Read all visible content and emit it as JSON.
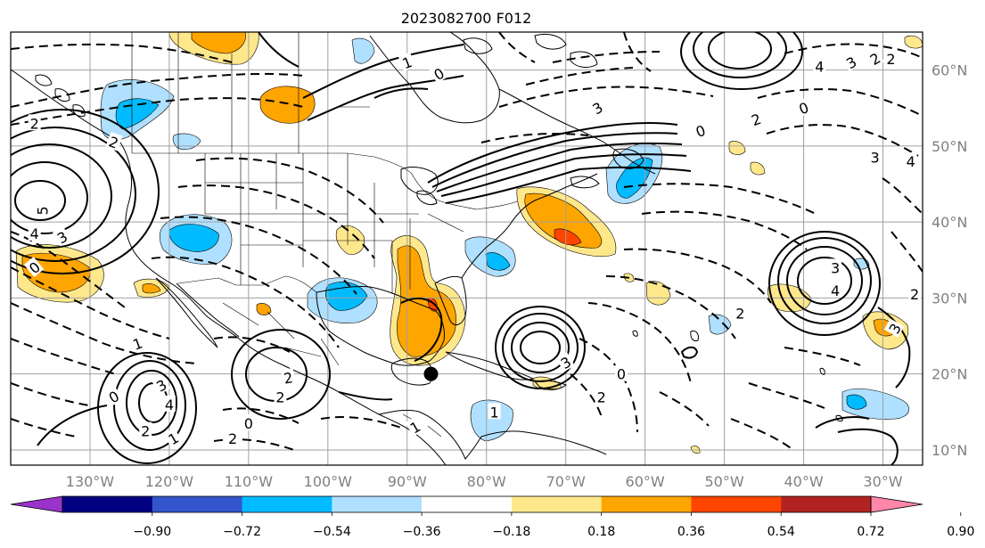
{
  "title": "2023082700 F012",
  "map": {
    "lon_range": [
      -140,
      -25
    ],
    "lat_range": [
      8,
      65
    ],
    "lat_labels": [
      "60°N",
      "50°N",
      "40°N",
      "30°N",
      "20°N",
      "10°N"
    ],
    "lon_labels": [
      "130°W",
      "120°W",
      "110°W",
      "100°W",
      "90°W",
      "80°W",
      "70°W",
      "60°W",
      "50°W",
      "40°W",
      "30°W"
    ],
    "contour_labels": [
      {
        "text": "1",
        "lon": -90,
        "lat": 61,
        "rot": -20
      },
      {
        "text": "0",
        "lon": -86,
        "lat": 59.5,
        "rot": -30
      },
      {
        "text": "2",
        "lon": -127,
        "lat": 50.5,
        "rot": 20
      },
      {
        "text": "2",
        "lon": -137,
        "lat": 53,
        "rot": 0
      },
      {
        "text": "5",
        "lon": -136,
        "lat": 41.5,
        "rot": -90
      },
      {
        "text": "4",
        "lon": -137,
        "lat": 38.5,
        "rot": 0
      },
      {
        "text": "3",
        "lon": -133.5,
        "lat": 38,
        "rot": -30
      },
      {
        "text": "0",
        "lon": -137,
        "lat": 34,
        "rot": -40
      },
      {
        "text": "3",
        "lon": -66,
        "lat": 55,
        "rot": -30
      },
      {
        "text": "2",
        "lon": -46,
        "lat": 53.5,
        "rot": -20
      },
      {
        "text": "0",
        "lon": -53,
        "lat": 52,
        "rot": -20
      },
      {
        "text": "0",
        "lon": -40,
        "lat": 55,
        "rot": -20
      },
      {
        "text": "4",
        "lon": -38,
        "lat": 60.5,
        "rot": 0
      },
      {
        "text": "3",
        "lon": -34,
        "lat": 61,
        "rot": -30
      },
      {
        "text": "2",
        "lon": -31,
        "lat": 61.5,
        "rot": -30
      },
      {
        "text": "2",
        "lon": -29,
        "lat": 61.5,
        "rot": 0
      },
      {
        "text": "3",
        "lon": -31,
        "lat": 48.5,
        "rot": 0
      },
      {
        "text": "4",
        "lon": -26.5,
        "lat": 48,
        "rot": 0
      },
      {
        "text": "3",
        "lon": -36,
        "lat": 34,
        "rot": 0
      },
      {
        "text": "4",
        "lon": -36,
        "lat": 31,
        "rot": 0
      },
      {
        "text": "2",
        "lon": -26,
        "lat": 30.5,
        "rot": 0
      },
      {
        "text": "3",
        "lon": -28.5,
        "lat": 26,
        "rot": -60
      },
      {
        "text": "2",
        "lon": -48,
        "lat": 28,
        "rot": 0
      },
      {
        "text": "2",
        "lon": -106,
        "lat": 17,
        "rot": 0
      },
      {
        "text": "2",
        "lon": -105,
        "lat": 19.5,
        "rot": -10
      },
      {
        "text": "3",
        "lon": -121,
        "lat": 18.5,
        "rot": -30
      },
      {
        "text": "4",
        "lon": -120,
        "lat": 16,
        "rot": 0
      },
      {
        "text": "2",
        "lon": -123,
        "lat": 12.5,
        "rot": 0
      },
      {
        "text": "1",
        "lon": -119.5,
        "lat": 11.5,
        "rot": -30
      },
      {
        "text": "0",
        "lon": -127,
        "lat": 17,
        "rot": -30
      },
      {
        "text": "1",
        "lon": -124,
        "lat": 24,
        "rot": -20
      },
      {
        "text": "3",
        "lon": -70,
        "lat": 21.5,
        "rot": -30
      },
      {
        "text": "0",
        "lon": -63,
        "lat": 20,
        "rot": 0
      },
      {
        "text": "2",
        "lon": -65.5,
        "lat": 17,
        "rot": 0
      },
      {
        "text": "1",
        "lon": -79,
        "lat": 15,
        "rot": 0
      },
      {
        "text": "1",
        "lon": -89,
        "lat": 13,
        "rot": -30
      },
      {
        "text": "2",
        "lon": -112,
        "lat": 11.5,
        "rot": 0
      },
      {
        "text": "0",
        "lon": -110,
        "lat": 13.5,
        "rot": 0
      }
    ],
    "marker": {
      "lon": -87,
      "lat": 20,
      "color": "#000000"
    }
  },
  "colorbar": {
    "colors": [
      "#9933cc",
      "#000080",
      "#3355cc",
      "#00bbff",
      "#b0e0ff",
      "#ffffff",
      "#ffe88c",
      "#ffa500",
      "#ff4500",
      "#b22222",
      "#ff88aa"
    ],
    "labels": [
      "−0.90",
      "−0.72",
      "−0.54",
      "−0.36",
      "−0.18",
      "0.18",
      "0.36",
      "0.54",
      "0.72",
      "0.90"
    ]
  }
}
